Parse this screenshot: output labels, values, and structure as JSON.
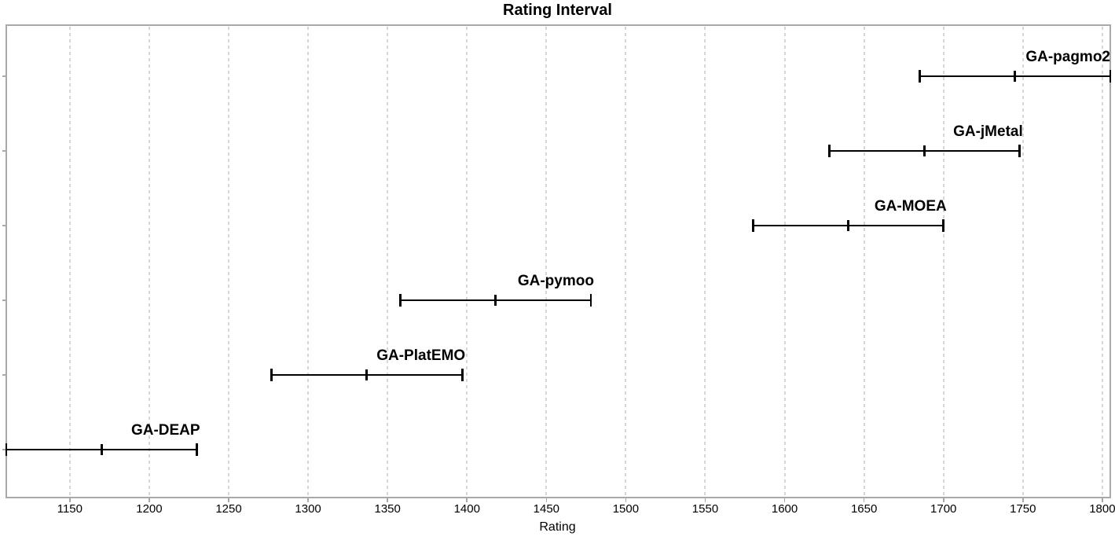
{
  "chart_data": {
    "type": "interval",
    "title": "Rating Interval",
    "xlabel": "Rating",
    "ylabel": "",
    "xlim": [
      1110,
      1805
    ],
    "x_ticks": [
      1150,
      1200,
      1250,
      1300,
      1350,
      1400,
      1450,
      1500,
      1550,
      1600,
      1650,
      1700,
      1750,
      1800
    ],
    "grid": "vertical-dashed",
    "legend_position": "none",
    "series": [
      {
        "name": "GA-pagmo2",
        "center": 1745,
        "low": 1685,
        "high": 1805
      },
      {
        "name": "GA-jMetal",
        "center": 1688,
        "low": 1628,
        "high": 1748
      },
      {
        "name": "GA-MOEA",
        "center": 1640,
        "low": 1580,
        "high": 1700
      },
      {
        "name": "GA-pymoo",
        "center": 1418,
        "low": 1358,
        "high": 1478
      },
      {
        "name": "GA-PlatEMO",
        "center": 1337,
        "low": 1277,
        "high": 1397
      },
      {
        "name": "GA-DEAP",
        "center": 1170,
        "low": 1110,
        "high": 1230
      }
    ],
    "colors": {
      "interval": "#000000",
      "grid": "#d6d6d6",
      "axis_border": "#a9a9a9",
      "text": "#000000",
      "background": "#ffffff"
    }
  }
}
